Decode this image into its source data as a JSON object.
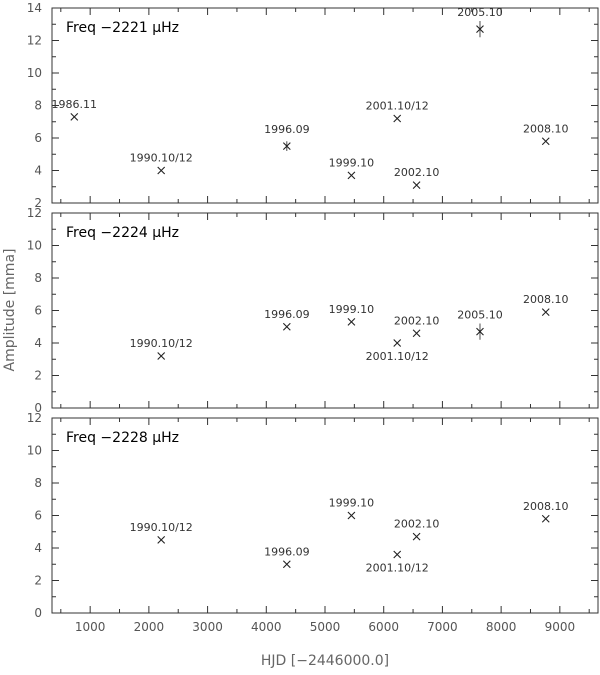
{
  "chart_data": {
    "type": "scatter",
    "xlabel": "HJD [−2446000.0]",
    "ylabel": "Amplitude [mma]",
    "xlim": [
      350,
      9650
    ],
    "x_ticks": [
      "1000",
      "2000",
      "3000",
      "4000",
      "5000",
      "6000",
      "7000",
      "8000",
      "9000"
    ],
    "x_tick_values": [
      1000,
      2000,
      3000,
      4000,
      5000,
      6000,
      7000,
      8000,
      9000
    ],
    "marker": "x-star",
    "color": "#222222",
    "panels": [
      {
        "title": "Freq −2221 μHz",
        "ylim": [
          2,
          14
        ],
        "y_ticks": [
          "2",
          "4",
          "6",
          "8",
          "10",
          "12",
          "14"
        ],
        "y_tick_values": [
          2,
          4,
          6,
          8,
          10,
          12,
          14
        ],
        "points": [
          {
            "label": "1986.11",
            "x": 730,
            "y": 7.3,
            "err": 0,
            "label_pos": "above"
          },
          {
            "label": "1990.10/12",
            "x": 2210,
            "y": 4.0,
            "err": 0,
            "label_pos": "above"
          },
          {
            "label": "1996.09",
            "x": 4350,
            "y": 5.5,
            "err": 0.3,
            "label_pos": "above"
          },
          {
            "label": "1999.10",
            "x": 5450,
            "y": 3.7,
            "err": 0,
            "label_pos": "above"
          },
          {
            "label": "2001.10/12",
            "x": 6230,
            "y": 7.2,
            "err": 0,
            "label_pos": "above"
          },
          {
            "label": "2002.10",
            "x": 6560,
            "y": 3.1,
            "err": 0,
            "label_pos": "above"
          },
          {
            "label": "2005.10",
            "x": 7640,
            "y": 12.7,
            "err": 0.5,
            "label_pos": "above"
          },
          {
            "label": "2008.10",
            "x": 8760,
            "y": 5.8,
            "err": 0,
            "label_pos": "above"
          }
        ]
      },
      {
        "title": "Freq −2224 μHz",
        "ylim": [
          0,
          12
        ],
        "y_ticks": [
          "0",
          "2",
          "4",
          "6",
          "8",
          "10",
          "12"
        ],
        "y_tick_values": [
          0,
          2,
          4,
          6,
          8,
          10,
          12
        ],
        "points": [
          {
            "label": "1990.10/12",
            "x": 2210,
            "y": 3.2,
            "err": 0,
            "label_pos": "above"
          },
          {
            "label": "1996.09",
            "x": 4350,
            "y": 5.0,
            "err": 0,
            "label_pos": "above"
          },
          {
            "label": "1999.10",
            "x": 5450,
            "y": 5.3,
            "err": 0,
            "label_pos": "above"
          },
          {
            "label": "2001.10/12",
            "x": 6230,
            "y": 4.0,
            "err": 0,
            "label_pos": "below"
          },
          {
            "label": "2002.10",
            "x": 6560,
            "y": 4.6,
            "err": 0,
            "label_pos": "above"
          },
          {
            "label": "2005.10",
            "x": 7640,
            "y": 4.7,
            "err": 0.5,
            "label_pos": "above"
          },
          {
            "label": "2008.10",
            "x": 8760,
            "y": 5.9,
            "err": 0,
            "label_pos": "above"
          }
        ]
      },
      {
        "title": "Freq −2228 μHz",
        "ylim": [
          0,
          12
        ],
        "y_ticks": [
          "0",
          "2",
          "4",
          "6",
          "8",
          "10",
          "12"
        ],
        "y_tick_values": [
          0,
          2,
          4,
          6,
          8,
          10,
          12
        ],
        "points": [
          {
            "label": "1990.10/12",
            "x": 2210,
            "y": 4.5,
            "err": 0,
            "label_pos": "above"
          },
          {
            "label": "1996.09",
            "x": 4350,
            "y": 3.0,
            "err": 0,
            "label_pos": "above"
          },
          {
            "label": "1999.10",
            "x": 5450,
            "y": 6.0,
            "err": 0,
            "label_pos": "above"
          },
          {
            "label": "2001.10/12",
            "x": 6230,
            "y": 3.6,
            "err": 0,
            "label_pos": "below"
          },
          {
            "label": "2002.10",
            "x": 6560,
            "y": 4.7,
            "err": 0,
            "label_pos": "above"
          },
          {
            "label": "2008.10",
            "x": 8760,
            "y": 5.8,
            "err": 0,
            "label_pos": "above"
          }
        ]
      }
    ]
  }
}
